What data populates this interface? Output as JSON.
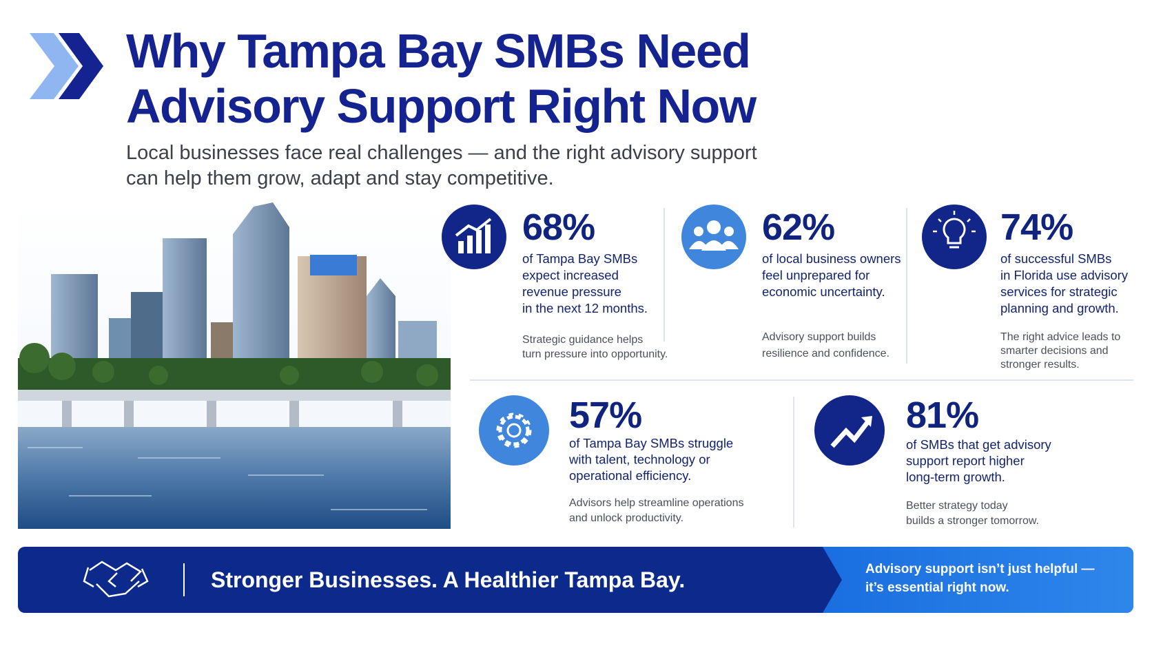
{
  "header": {
    "title": [
      "Why Tampa Bay SMBs Need",
      "Advisory Support Right Now"
    ],
    "subtitle": [
      "Local businesses face real challenges — and the right advisory support",
      "can help them grow, adapt and stay competitive."
    ]
  },
  "stats": [
    {
      "value": "68%",
      "description": [
        "of Tampa Bay SMBs",
        "expect increased",
        "revenue pressure",
        "in the next 12 months."
      ],
      "note": [
        "Strategic guidance helps",
        "turn pressure into opportunity."
      ]
    },
    {
      "value": "62%",
      "description": [
        "of local business owners",
        "feel unprepared for",
        "economic uncertainty."
      ],
      "note": [
        "Advisory support builds",
        "resilience and confidence."
      ]
    },
    {
      "value": "74%",
      "description": [
        "of successful SMBs",
        "in Florida use advisory",
        "services for strategic",
        "planning and growth."
      ],
      "note": [
        "The right advice leads to",
        "smarter decisions and",
        "stronger results."
      ]
    },
    {
      "value": "57%",
      "description": [
        "of Tampa Bay SMBs struggle",
        "with talent, technology or",
        "operational efficiency."
      ],
      "note": [
        "Advisors help streamline operations",
        "and unlock productivity."
      ]
    },
    {
      "value": "81%",
      "description": [
        "of SMBs that get advisory",
        "support report higher",
        "long-term growth."
      ],
      "note": [
        "Better strategy today",
        "builds a stronger tomorrow."
      ]
    }
  ],
  "banner": {
    "tagline": "Stronger Businesses. A Healthier Tampa Bay.",
    "message": [
      "Advisory support isn’t just helpful —",
      "it’s essential right now."
    ]
  }
}
